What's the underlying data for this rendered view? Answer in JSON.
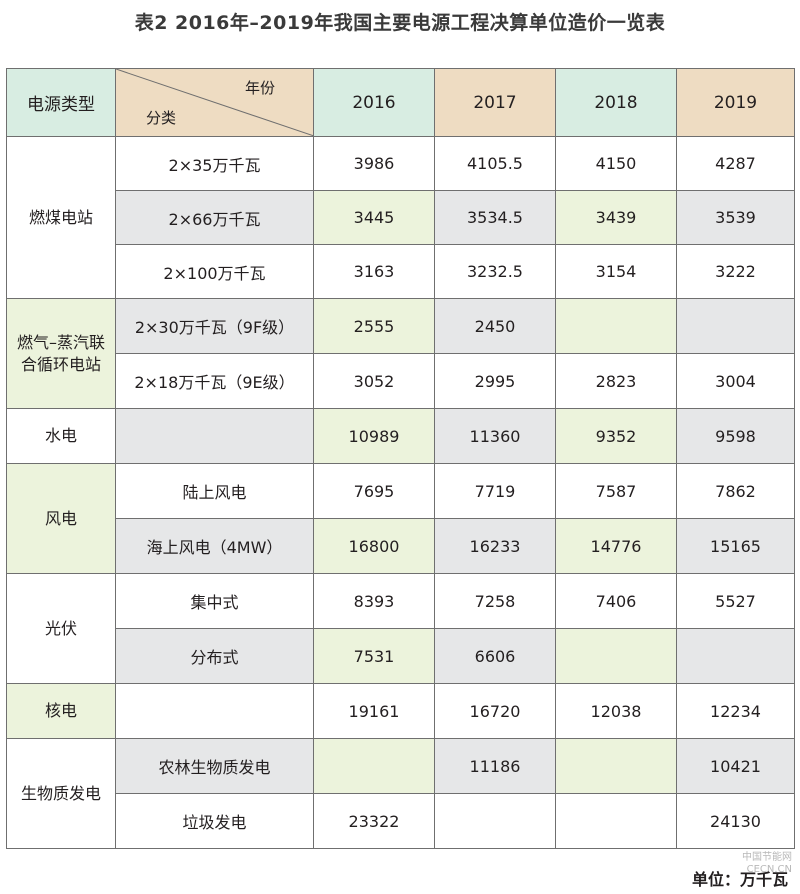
{
  "title": "表2 2016年–2019年我国主要电源工程决算单位造价一览表",
  "header": {
    "type_col": "电源类型",
    "diag_top": "年份",
    "diag_bottom": "分类",
    "years": [
      "2016",
      "2017",
      "2018",
      "2019"
    ]
  },
  "groups": [
    {
      "name": "燃煤电站",
      "rows": [
        {
          "sub": "2×35万千瓦",
          "values": [
            "3986",
            "4105.5",
            "4150",
            "4287"
          ]
        },
        {
          "sub": "2×66万千瓦",
          "values": [
            "3445",
            "3534.5",
            "3439",
            "3539"
          ]
        },
        {
          "sub": "2×100万千瓦",
          "values": [
            "3163",
            "3232.5",
            "3154",
            "3222"
          ]
        }
      ]
    },
    {
      "name_line1": "燃气–蒸汽联",
      "name_line2": "合循环电站",
      "rows": [
        {
          "sub": "2×30万千瓦（9F级）",
          "values": [
            "2555",
            "2450",
            "",
            ""
          ]
        },
        {
          "sub": "2×18万千瓦（9E级）",
          "values": [
            "3052",
            "2995",
            "2823",
            "3004"
          ]
        }
      ]
    },
    {
      "name": "水电",
      "rows": [
        {
          "sub": "",
          "values": [
            "10989",
            "11360",
            "9352",
            "9598"
          ]
        }
      ]
    },
    {
      "name": "风电",
      "rows": [
        {
          "sub": "陆上风电",
          "values": [
            "7695",
            "7719",
            "7587",
            "7862"
          ]
        },
        {
          "sub": "海上风电（4MW）",
          "values": [
            "16800",
            "16233",
            "14776",
            "15165"
          ]
        }
      ]
    },
    {
      "name": "光伏",
      "rows": [
        {
          "sub": "集中式",
          "values": [
            "8393",
            "7258",
            "7406",
            "5527"
          ]
        },
        {
          "sub": "分布式",
          "values": [
            "7531",
            "6606",
            "",
            ""
          ]
        }
      ]
    },
    {
      "name": "核电",
      "rows": [
        {
          "sub": "",
          "values": [
            "19161",
            "16720",
            "12038",
            "12234"
          ]
        }
      ]
    },
    {
      "name": "生物质发电",
      "rows": [
        {
          "sub": "农林生物质发电",
          "values": [
            "",
            "11186",
            "",
            "10421"
          ]
        },
        {
          "sub": "垃圾发电",
          "values": [
            "23322",
            "",
            "",
            "24130"
          ]
        }
      ]
    }
  ],
  "unit": "单位：万千瓦",
  "watermark": {
    "line1": "中国节能网",
    "line2": "CECN.CN"
  }
}
